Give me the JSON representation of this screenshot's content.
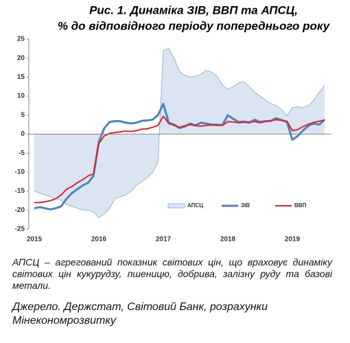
{
  "chart_data": {
    "type": "line",
    "title": [
      "Рис. 1. Динаміка ЗІВ, ВВП та АПСЦ,",
      "% до відповідного періоду попереднього року"
    ],
    "categories": [
      "2015",
      null,
      null,
      null,
      null,
      null,
      null,
      null,
      null,
      null,
      null,
      null,
      "2016",
      null,
      null,
      null,
      null,
      null,
      null,
      null,
      null,
      null,
      null,
      null,
      "2017",
      null,
      null,
      null,
      null,
      null,
      null,
      null,
      null,
      null,
      null,
      null,
      "2018",
      null,
      null,
      null,
      null,
      null,
      null,
      null,
      null,
      null,
      null,
      null,
      "2019",
      null,
      null,
      null,
      null,
      null,
      null
    ],
    "series": [
      {
        "name": "АПСЦ",
        "style": "area",
        "color": "#dbe5f1",
        "stroke": "#95b3d7",
        "values": [
          -15,
          -15.5,
          -16,
          -16.5,
          -17,
          -17.5,
          -18.5,
          -19,
          -19.5,
          -20,
          -20,
          -20.5,
          -22,
          -21,
          -19.5,
          -17,
          -16.5,
          -16,
          -15,
          -13.5,
          -12.5,
          -11.5,
          -10,
          -7.5,
          22,
          22.5,
          20,
          16.5,
          15.5,
          15,
          15.2,
          15.8,
          16.8,
          16.3,
          15.2,
          13,
          11.8,
          12.5,
          13.5,
          13.8,
          12.5,
          11,
          10,
          9,
          8,
          7.5,
          6.5,
          4.8,
          7,
          7.2,
          7,
          7.5,
          9,
          11,
          12.8
        ]
      },
      {
        "name": "ЗІВ",
        "style": "line",
        "color": "#4f81bd",
        "width": 3,
        "values": [
          -19.5,
          -19.2,
          -19.5,
          -19.8,
          -19.5,
          -19,
          -17,
          -15.5,
          -14.5,
          -13.5,
          -12.8,
          -11,
          -2,
          1.5,
          3.2,
          3.4,
          3.4,
          3,
          2.8,
          3,
          3.5,
          3.6,
          3.8,
          5,
          8,
          3,
          2.5,
          1.6,
          2,
          2.8,
          2.3,
          3,
          2.8,
          2.5,
          2.5,
          2.4,
          5,
          4,
          3.2,
          3.3,
          3,
          3.8,
          3.2,
          3.4,
          3.5,
          4.2,
          3.7,
          3.2,
          -1.5,
          -0.5,
          1,
          2.2,
          2.8,
          2.5,
          3.8
        ]
      },
      {
        "name": "ВВП",
        "style": "line",
        "color": "#e3212b",
        "width": 2,
        "values": [
          -18,
          -18,
          -17.8,
          -17.5,
          -17,
          -16,
          -14.5,
          -13.8,
          -12.8,
          -12,
          -11,
          -10.5,
          -2.5,
          -0.5,
          0.2,
          0.4,
          0.6,
          0.8,
          0.7,
          0.9,
          1.3,
          1.4,
          1.8,
          2.3,
          4.7,
          2.8,
          2.3,
          1.8,
          2.2,
          2.5,
          2.2,
          2.1,
          2.3,
          2.4,
          2.3,
          2.3,
          3.3,
          3.2,
          3,
          3.1,
          3.2,
          3.3,
          3,
          3.3,
          3.5,
          3.8,
          3.6,
          3.4,
          0.9,
          1.2,
          2,
          2.6,
          3.1,
          3.4,
          3.7
        ]
      }
    ],
    "ylim": [
      -25,
      25
    ],
    "yticks": [
      -25,
      -20,
      -15,
      -10,
      -5,
      0,
      5,
      10,
      15,
      20,
      25
    ],
    "legend": "lower-right"
  },
  "footnote": "АПСЦ – агрегований показник світових цін, що враховує динаміку світових цін кукурудзу, пшеницю, добрива, залізну руду та базові метали.",
  "source": "Джерело. Держстат, Світовий Банк, розрахунки Мінекономрозвитку"
}
